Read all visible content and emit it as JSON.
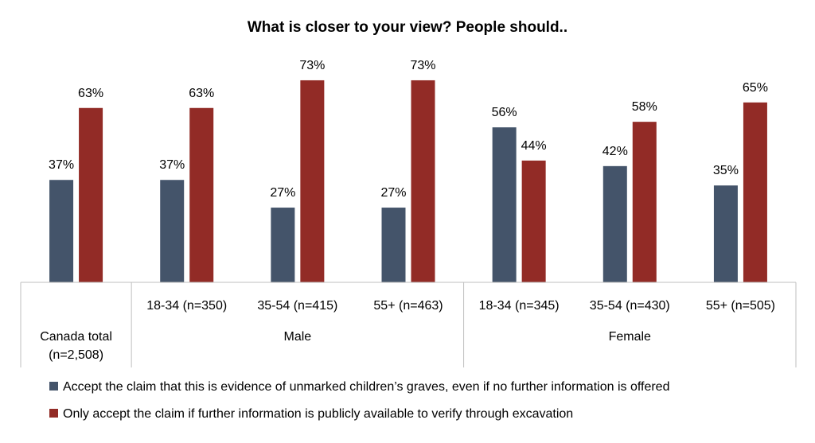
{
  "chart_data": {
    "type": "bar",
    "title": "What is closer to your view? People should..",
    "groups": [
      {
        "label": "Canada total (n=2,508)",
        "lines": [
          "Canada total",
          "(n=2,508)"
        ],
        "categories": [
          ""
        ]
      },
      {
        "label": "Male",
        "lines": [
          "Male"
        ],
        "categories": [
          "18-34 (n=350)",
          "35-54 (n=415)",
          "55+ (n=463)"
        ]
      },
      {
        "label": "Female",
        "lines": [
          "Female"
        ],
        "categories": [
          "18-34 (n=345)",
          "35-54 (n=430)",
          "55+ (n=505)"
        ]
      }
    ],
    "series": [
      {
        "name": "Accept the claim that this is evidence of unmarked children’s graves, even if no further information is offered",
        "color": "#44546a",
        "values": [
          37,
          37,
          27,
          27,
          56,
          42,
          35
        ],
        "labels": [
          "37%",
          "37%",
          "27%",
          "27%",
          "56%",
          "42%",
          "35%"
        ]
      },
      {
        "name": "Only accept the claim if further information is publicly available to verify through excavation",
        "color": "#922b26",
        "values": [
          63,
          63,
          73,
          73,
          44,
          58,
          65
        ],
        "labels": [
          "63%",
          "63%",
          "73%",
          "73%",
          "44%",
          "58%",
          "65%"
        ]
      }
    ],
    "value_unit": "%",
    "ylim": [
      0,
      80
    ],
    "grid": false,
    "legend_position": "bottom-left"
  }
}
